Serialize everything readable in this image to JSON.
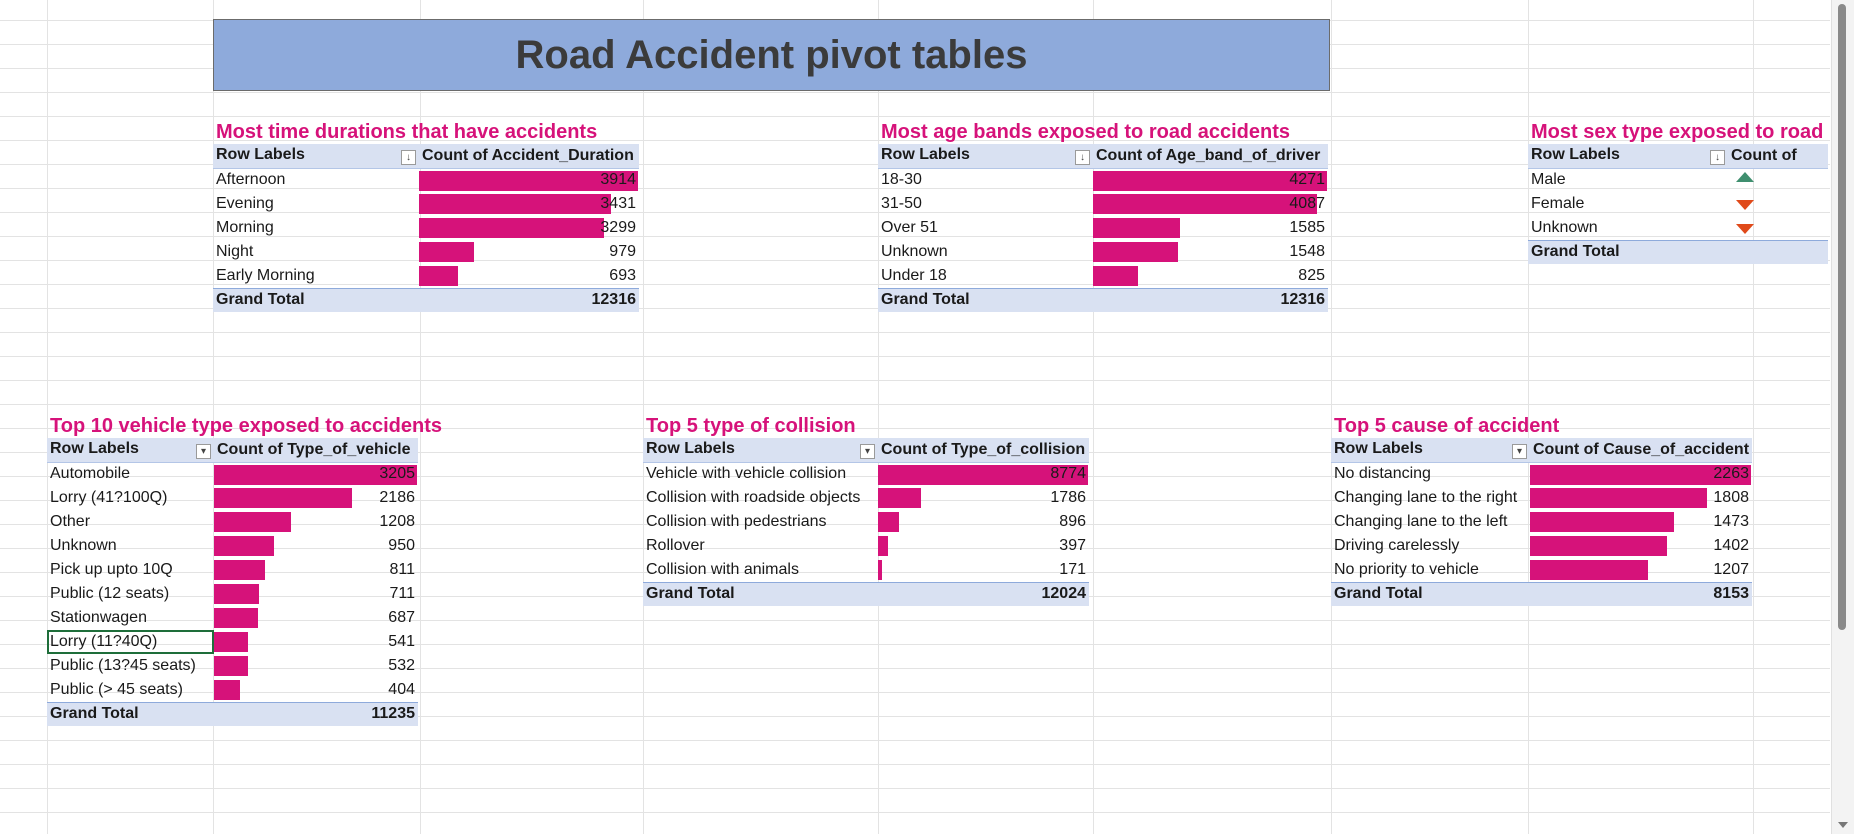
{
  "banner_title": "Road Accident pivot tables",
  "colors": {
    "bar": "#d6127a",
    "title": "#d6127a",
    "header_bg": "#d9e1f2",
    "banner_bg": "#8eaadb",
    "arrow_up": "#3f8f6f",
    "arrow_down": "#e04a1a"
  },
  "pivots": {
    "duration": {
      "title": "Most time durations that have accidents",
      "row_header": "Row Labels",
      "value_header": "Count of Accident_Duration",
      "filter_icon": "sort-icon",
      "rows": [
        {
          "label": "Afternoon",
          "value": "3914"
        },
        {
          "label": "Evening",
          "value": "3431"
        },
        {
          "label": "Morning",
          "value": "3299"
        },
        {
          "label": "Night",
          "value": "979"
        },
        {
          "label": "Early Morning",
          "value": "693"
        }
      ],
      "total_label": "Grand Total",
      "total_value": "12316"
    },
    "age": {
      "title": "Most  age bands exposed to road accidents",
      "row_header": "Row Labels",
      "value_header": "Count of Age_band_of_driver",
      "filter_icon": "sort-icon",
      "rows": [
        {
          "label": "18-30",
          "value": "4271"
        },
        {
          "label": "31-50",
          "value": "4087"
        },
        {
          "label": "Over 51",
          "value": "1585"
        },
        {
          "label": "Unknown",
          "value": "1548"
        },
        {
          "label": "Under 18",
          "value": "825"
        }
      ],
      "total_label": "Grand Total",
      "total_value": "12316"
    },
    "sex": {
      "title": "Most  sex type exposed to road",
      "row_header": "Row Labels",
      "value_header": "Count of",
      "filter_icon": "sort-icon",
      "rows": [
        {
          "label": "Male",
          "icon": "arrow-up-icon"
        },
        {
          "label": "Female",
          "icon": "arrow-down-icon"
        },
        {
          "label": "Unknown",
          "icon": "arrow-down-icon"
        }
      ],
      "total_label": "Grand Total"
    },
    "vehicle": {
      "title": "Top 10 vehicle type exposed to accidents",
      "row_header": "Row Labels",
      "value_header": "Count of Type_of_vehicle",
      "filter_icon": "filter-icon",
      "rows": [
        {
          "label": "Automobile",
          "value": "3205"
        },
        {
          "label": "Lorry (41?100Q)",
          "value": "2186"
        },
        {
          "label": "Other",
          "value": "1208"
        },
        {
          "label": "Unknown",
          "value": "950"
        },
        {
          "label": "Pick up upto 10Q",
          "value": "811"
        },
        {
          "label": "Public (12 seats)",
          "value": "711"
        },
        {
          "label": "Stationwagen",
          "value": "687"
        },
        {
          "label": "Lorry (11?40Q)",
          "value": "541"
        },
        {
          "label": "Public (13?45 seats)",
          "value": "532"
        },
        {
          "label": "Public (> 45 seats)",
          "value": "404"
        }
      ],
      "total_label": "Grand Total",
      "total_value": "11235"
    },
    "collision": {
      "title": "Top 5 type of collision",
      "row_header": "Row Labels",
      "value_header": "Count of Type_of_collision",
      "filter_icon": "filter-icon",
      "rows": [
        {
          "label": "Vehicle with vehicle collision",
          "value": "8774"
        },
        {
          "label": "Collision with roadside objects",
          "value": "1786"
        },
        {
          "label": "Collision with pedestrians",
          "value": "896"
        },
        {
          "label": "Rollover",
          "value": "397"
        },
        {
          "label": "Collision with animals",
          "value": "171"
        }
      ],
      "total_label": "Grand Total",
      "total_value": "12024"
    },
    "cause": {
      "title": "Top 5 cause of accident",
      "row_header": "Row Labels",
      "value_header": "Count of Cause_of_accident",
      "filter_icon": "filter-icon",
      "rows": [
        {
          "label": "No distancing",
          "value": "2263"
        },
        {
          "label": "Changing lane to the right",
          "value": "1808"
        },
        {
          "label": "Changing lane to the left",
          "value": "1473"
        },
        {
          "label": "Driving carelessly",
          "value": "1402"
        },
        {
          "label": "No priority to vehicle",
          "value": "1207"
        }
      ],
      "total_label": "Grand Total",
      "total_value": "8153"
    }
  }
}
